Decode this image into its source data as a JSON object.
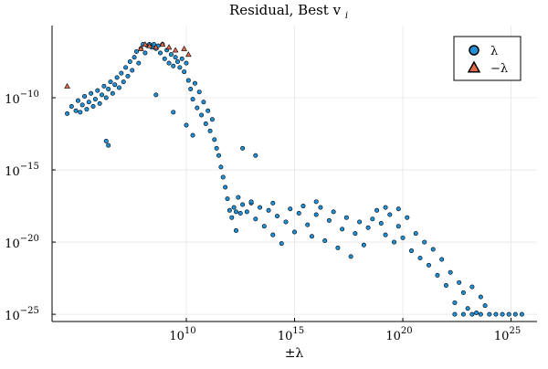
{
  "chart_data": {
    "type": "scatter",
    "title": "Residual, Best v",
    "title_subscript": "i",
    "xlabel": "±λ",
    "ylabel": "",
    "x_scale": "log10",
    "y_scale": "log10",
    "x_ticks": [
      {
        "value": 10,
        "label_base": "10",
        "label_exp": "10"
      },
      {
        "value": 15,
        "label_base": "10",
        "label_exp": "15"
      },
      {
        "value": 20,
        "label_base": "10",
        "label_exp": "20"
      },
      {
        "value": 25,
        "label_base": "10",
        "label_exp": "25"
      }
    ],
    "y_ticks": [
      {
        "value": -10,
        "label_base": "10",
        "label_exp": "−10"
      },
      {
        "value": -15,
        "label_base": "10",
        "label_exp": "−15"
      },
      {
        "value": -20,
        "label_base": "10",
        "label_exp": "−20"
      },
      {
        "value": -25,
        "label_base": "10",
        "label_exp": "−25"
      }
    ],
    "x_range_log10": [
      3.8,
      26.2
    ],
    "y_range_log10": [
      -25.5,
      -5.0
    ],
    "grid": true,
    "legend_position": "top-right",
    "series": [
      {
        "name": "λ",
        "marker": "circle",
        "color": "#1f8fd6",
        "points_log10": [
          [
            4.5,
            -11.1
          ],
          [
            4.7,
            -10.6
          ],
          [
            4.9,
            -10.9
          ],
          [
            5.0,
            -10.2
          ],
          [
            5.1,
            -11.0
          ],
          [
            5.2,
            -10.5
          ],
          [
            5.3,
            -9.9
          ],
          [
            5.4,
            -10.8
          ],
          [
            5.5,
            -10.3
          ],
          [
            5.6,
            -9.7
          ],
          [
            5.7,
            -10.6
          ],
          [
            5.8,
            -10.1
          ],
          [
            5.9,
            -9.5
          ],
          [
            6.0,
            -10.4
          ],
          [
            6.1,
            -9.8
          ],
          [
            6.2,
            -9.2
          ],
          [
            6.3,
            -10.0
          ],
          [
            6.4,
            -9.4
          ],
          [
            6.5,
            -8.9
          ],
          [
            6.6,
            -9.7
          ],
          [
            6.7,
            -9.1
          ],
          [
            6.8,
            -8.6
          ],
          [
            6.9,
            -9.3
          ],
          [
            7.0,
            -8.3
          ],
          [
            7.1,
            -8.9
          ],
          [
            7.2,
            -7.9
          ],
          [
            7.3,
            -8.5
          ],
          [
            7.4,
            -7.5
          ],
          [
            7.5,
            -8.1
          ],
          [
            7.6,
            -7.2
          ],
          [
            7.7,
            -6.8
          ],
          [
            7.8,
            -7.6
          ],
          [
            7.9,
            -6.6
          ],
          [
            8.0,
            -6.3
          ],
          [
            8.1,
            -6.9
          ],
          [
            8.2,
            -6.4
          ],
          [
            8.3,
            -6.3
          ],
          [
            8.4,
            -6.5
          ],
          [
            8.5,
            -6.3
          ],
          [
            8.6,
            -6.6
          ],
          [
            8.7,
            -6.4
          ],
          [
            8.8,
            -6.9
          ],
          [
            8.9,
            -6.3
          ],
          [
            9.0,
            -7.3
          ],
          [
            9.1,
            -6.7
          ],
          [
            9.2,
            -7.6
          ],
          [
            9.3,
            -7.0
          ],
          [
            9.4,
            -7.8
          ],
          [
            9.5,
            -7.2
          ],
          [
            9.6,
            -7.5
          ],
          [
            9.7,
            -7.9
          ],
          [
            9.8,
            -7.3
          ],
          [
            9.9,
            -8.2
          ],
          [
            10.0,
            -7.6
          ],
          [
            10.1,
            -8.8
          ],
          [
            10.2,
            -9.4
          ],
          [
            10.3,
            -10.1
          ],
          [
            10.4,
            -9.0
          ],
          [
            10.5,
            -10.7
          ],
          [
            10.6,
            -9.6
          ],
          [
            10.7,
            -11.2
          ],
          [
            10.8,
            -10.3
          ],
          [
            10.9,
            -11.8
          ],
          [
            11.0,
            -10.9
          ],
          [
            11.1,
            -12.3
          ],
          [
            11.2,
            -11.5
          ],
          [
            11.3,
            -12.9
          ],
          [
            11.4,
            -13.5
          ],
          [
            11.5,
            -14.0
          ],
          [
            11.6,
            -14.8
          ],
          [
            11.7,
            -15.5
          ],
          [
            11.8,
            -16.2
          ],
          [
            11.9,
            -17.0
          ],
          [
            12.0,
            -17.8
          ],
          [
            12.1,
            -18.3
          ],
          [
            12.2,
            -17.6
          ],
          [
            12.3,
            -19.2
          ],
          [
            12.4,
            -16.9
          ],
          [
            12.5,
            -18.0
          ],
          [
            12.6,
            -17.4
          ],
          [
            12.8,
            -17.9
          ],
          [
            13.0,
            -17.3
          ],
          [
            13.2,
            -18.4
          ],
          [
            13.4,
            -17.6
          ],
          [
            13.6,
            -18.9
          ],
          [
            13.8,
            -17.8
          ],
          [
            14.0,
            -19.5
          ],
          [
            14.2,
            -18.2
          ],
          [
            14.4,
            -20.1
          ],
          [
            14.6,
            -18.6
          ],
          [
            14.8,
            -17.7
          ],
          [
            15.0,
            -19.3
          ],
          [
            15.2,
            -18.0
          ],
          [
            15.4,
            -17.5
          ],
          [
            15.6,
            -18.8
          ],
          [
            15.8,
            -19.6
          ],
          [
            16.0,
            -18.1
          ],
          [
            16.2,
            -17.6
          ],
          [
            16.4,
            -19.9
          ],
          [
            16.6,
            -18.5
          ],
          [
            16.8,
            -17.9
          ],
          [
            17.0,
            -20.4
          ],
          [
            17.2,
            -19.1
          ],
          [
            17.4,
            -18.3
          ],
          [
            17.6,
            -21.0
          ],
          [
            17.8,
            -19.4
          ],
          [
            18.0,
            -18.6
          ],
          [
            18.2,
            -20.2
          ],
          [
            18.4,
            -19.0
          ],
          [
            18.6,
            -18.4
          ],
          [
            18.8,
            -17.8
          ],
          [
            19.0,
            -18.7
          ],
          [
            19.2,
            -19.5
          ],
          [
            19.4,
            -18.1
          ],
          [
            19.6,
            -20.0
          ],
          [
            19.8,
            -18.9
          ],
          [
            20.0,
            -19.7
          ],
          [
            20.2,
            -18.3
          ],
          [
            20.4,
            -20.6
          ],
          [
            20.6,
            -19.4
          ],
          [
            20.8,
            -21.1
          ],
          [
            21.0,
            -20.0
          ],
          [
            21.2,
            -21.6
          ],
          [
            21.4,
            -20.5
          ],
          [
            21.6,
            -22.3
          ],
          [
            21.8,
            -21.2
          ],
          [
            22.0,
            -23.0
          ],
          [
            22.2,
            -22.1
          ],
          [
            22.4,
            -24.2
          ],
          [
            22.6,
            -22.8
          ],
          [
            22.8,
            -23.5
          ],
          [
            23.0,
            -24.6
          ],
          [
            23.2,
            -23.1
          ],
          [
            23.4,
            -24.9
          ],
          [
            23.6,
            -23.8
          ],
          [
            23.8,
            -24.4
          ],
          [
            24.0,
            -25.0
          ],
          [
            24.3,
            -25.0
          ],
          [
            24.6,
            -25.0
          ],
          [
            24.9,
            -25.0
          ],
          [
            25.2,
            -25.0
          ],
          [
            25.5,
            -25.0
          ],
          [
            22.4,
            -25.0
          ],
          [
            22.8,
            -25.0
          ],
          [
            23.2,
            -25.0
          ],
          [
            23.6,
            -25.0
          ],
          [
            6.3,
            -13.0
          ],
          [
            6.4,
            -13.3
          ],
          [
            8.6,
            -9.8
          ],
          [
            9.4,
            -11.0
          ],
          [
            10.0,
            -11.9
          ],
          [
            10.3,
            -12.6
          ],
          [
            12.6,
            -13.5
          ],
          [
            13.2,
            -14.0
          ],
          [
            12.3,
            -17.9
          ],
          [
            13.0,
            -17.2
          ],
          [
            14.0,
            -17.3
          ],
          [
            16.0,
            -17.2
          ],
          [
            19.2,
            -17.6
          ],
          [
            19.8,
            -17.7
          ]
        ]
      },
      {
        "name": "−λ",
        "marker": "triangle",
        "color": "#e2694a",
        "points_log10": [
          [
            4.5,
            -9.2
          ],
          [
            8.3,
            -6.4
          ],
          [
            8.6,
            -6.5
          ],
          [
            8.9,
            -6.3
          ],
          [
            9.2,
            -6.5
          ],
          [
            9.5,
            -6.7
          ],
          [
            9.9,
            -6.6
          ],
          [
            10.1,
            -7.0
          ],
          [
            7.9,
            -6.6
          ],
          [
            8.1,
            -6.3
          ]
        ]
      }
    ]
  }
}
